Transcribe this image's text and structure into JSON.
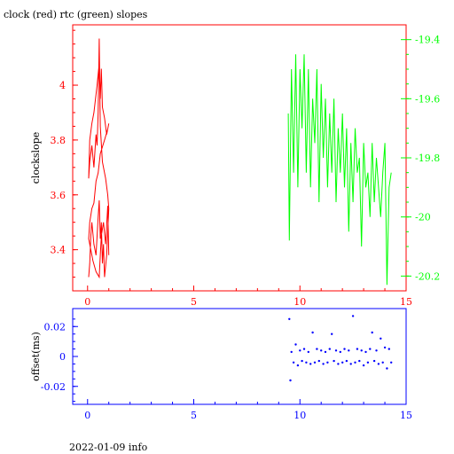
{
  "title": "clock (red) rtc (green) slopes",
  "footer": "2022-01-09 info",
  "colors": {
    "clock": "#ff0000",
    "rtc": "#00ff00",
    "offset": "#0000ff",
    "axis_main": "#ff0000",
    "axis_right": "#00ff00",
    "axis_bottom": "#0000ff"
  },
  "chart_data": [
    {
      "type": "line",
      "ylabel": "clockslope",
      "xlim": [
        -0.7,
        15
      ],
      "ylim": [
        3.25,
        4.22
      ],
      "y2lim": [
        -20.25,
        -19.35
      ],
      "x_ticks": [
        0,
        5,
        10,
        15
      ],
      "y_ticks": [
        3.4,
        3.6,
        3.8,
        4
      ],
      "y_tick_labels": [
        "3.4",
        "3.6",
        "3.8",
        "4"
      ],
      "y2_ticks": [
        -20.2,
        -20,
        -19.8,
        -19.6,
        -19.4
      ],
      "y2_tick_labels": [
        "-20.2",
        "-20",
        "-19.8",
        "-19.6",
        "-19.4"
      ],
      "series": [
        {
          "axis": "left",
          "x": [
            0.05,
            0.1,
            0.15,
            0.2,
            0.3,
            0.4,
            0.5,
            0.55,
            0.6,
            0.65,
            0.7,
            0.75,
            0.8,
            0.9,
            1.0,
            0.95,
            0.85,
            0.7,
            0.6,
            0.55,
            0.5,
            0.45,
            0.4,
            0.3,
            0.2,
            0.1,
            0.05,
            0.1,
            0.2,
            0.3,
            0.45,
            0.55,
            0.6,
            0.65,
            0.7,
            0.8,
            0.9,
            1.0,
            0.95,
            0.8,
            0.6,
            0.5,
            0.4,
            0.3,
            0.2,
            0.1,
            0.05,
            0.15,
            0.25,
            0.4,
            0.55,
            0.6,
            0.65,
            0.75,
            0.85,
            0.95,
            1.0
          ],
          "values": [
            3.3,
            3.35,
            3.45,
            3.5,
            3.42,
            3.38,
            3.52,
            3.58,
            3.44,
            3.5,
            3.35,
            3.42,
            3.3,
            3.38,
            3.55,
            3.6,
            3.66,
            3.72,
            3.85,
            4.17,
            3.9,
            3.78,
            3.82,
            3.7,
            3.78,
            3.72,
            3.66,
            3.8,
            3.86,
            3.9,
            4.0,
            4.08,
            3.95,
            4.06,
            3.92,
            3.88,
            3.82,
            3.86,
            3.84,
            3.8,
            3.75,
            3.68,
            3.65,
            3.57,
            3.55,
            3.5,
            3.44,
            3.4,
            3.36,
            3.32,
            3.3,
            3.38,
            3.45,
            3.5,
            3.42,
            3.56,
            3.38
          ]
        },
        {
          "axis": "right",
          "x": [
            9.45,
            9.5,
            9.6,
            9.7,
            9.8,
            9.9,
            10.0,
            10.1,
            10.2,
            10.3,
            10.4,
            10.5,
            10.6,
            10.7,
            10.8,
            10.9,
            11.0,
            11.1,
            11.2,
            11.3,
            11.4,
            11.5,
            11.6,
            11.7,
            11.8,
            11.9,
            12.0,
            12.1,
            12.2,
            12.3,
            12.4,
            12.5,
            12.6,
            12.7,
            12.8,
            12.9,
            13.0,
            13.1,
            13.2,
            13.3,
            13.4,
            13.5,
            13.6,
            13.7,
            13.8,
            13.9,
            14.0,
            14.1,
            14.2,
            14.3
          ],
          "values": [
            -19.65,
            -20.08,
            -19.5,
            -19.85,
            -19.45,
            -19.9,
            -19.5,
            -19.7,
            -19.45,
            -19.85,
            -19.5,
            -19.9,
            -19.6,
            -19.75,
            -19.5,
            -19.95,
            -19.55,
            -19.8,
            -19.6,
            -19.9,
            -19.65,
            -19.85,
            -19.6,
            -19.95,
            -19.7,
            -19.85,
            -19.65,
            -19.9,
            -19.7,
            -20.05,
            -19.75,
            -19.95,
            -19.7,
            -19.85,
            -19.8,
            -20.1,
            -19.75,
            -19.9,
            -19.85,
            -20.0,
            -19.75,
            -19.95,
            -19.8,
            -19.9,
            -20.0,
            -19.85,
            -19.75,
            -20.23,
            -19.9,
            -19.85
          ]
        }
      ]
    },
    {
      "type": "scatter",
      "ylabel": "offset(ms)",
      "xlim": [
        -0.7,
        15
      ],
      "ylim": [
        -0.032,
        0.032
      ],
      "x_ticks": [
        0,
        5,
        10,
        15
      ],
      "y_ticks": [
        -0.02,
        0,
        0.02
      ],
      "y_tick_labels": [
        "-0.02",
        "0",
        "0.02"
      ],
      "series": [
        {
          "x": [
            9.5,
            9.55,
            9.6,
            9.7,
            9.8,
            9.9,
            10.0,
            10.1,
            10.2,
            10.3,
            10.4,
            10.5,
            10.6,
            10.7,
            10.8,
            10.9,
            11.0,
            11.1,
            11.2,
            11.3,
            11.4,
            11.5,
            11.6,
            11.7,
            11.8,
            11.9,
            12.0,
            12.1,
            12.2,
            12.3,
            12.4,
            12.5,
            12.6,
            12.7,
            12.8,
            12.9,
            13.0,
            13.1,
            13.2,
            13.3,
            13.4,
            13.5,
            13.6,
            13.7,
            13.8,
            13.9,
            14.0,
            14.1,
            14.2,
            14.3
          ],
          "values": [
            0.025,
            -0.016,
            0.003,
            -0.004,
            0.008,
            -0.006,
            0.004,
            -0.003,
            0.005,
            -0.004,
            0.003,
            -0.005,
            0.016,
            -0.004,
            0.005,
            -0.003,
            0.004,
            -0.005,
            0.003,
            -0.004,
            0.005,
            0.015,
            -0.003,
            0.004,
            -0.005,
            0.003,
            -0.004,
            0.005,
            -0.003,
            0.004,
            -0.005,
            0.027,
            -0.004,
            0.005,
            -0.003,
            0.004,
            -0.006,
            0.003,
            -0.004,
            0.005,
            0.016,
            -0.003,
            0.004,
            -0.005,
            0.012,
            -0.004,
            0.006,
            -0.008,
            0.005,
            -0.004
          ]
        }
      ]
    }
  ]
}
